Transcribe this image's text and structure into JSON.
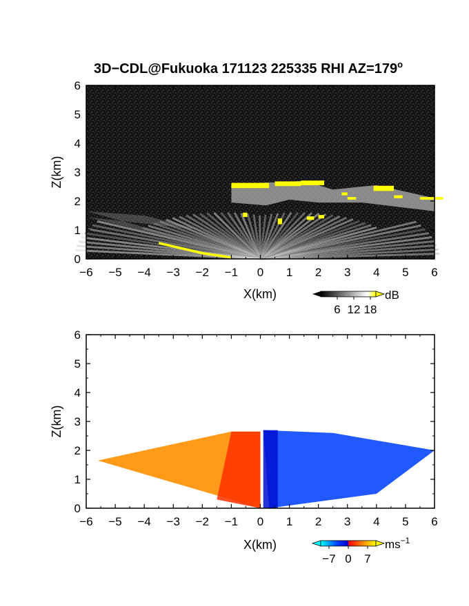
{
  "title": "3D−CDL@Fukuoka 171123 225335 RHI AZ=179",
  "title_sup": "o",
  "chart_data": [
    {
      "type": "heatmap",
      "quantity": "reflectivity",
      "xlabel": "X(km)",
      "ylabel": "Z(km)",
      "xlim": [
        -6,
        6
      ],
      "ylim": [
        0,
        6
      ],
      "xticks": [
        "−6",
        "−5",
        "−4",
        "−3",
        "−2",
        "−1",
        "0",
        "1",
        "2",
        "3",
        "4",
        "5",
        "6"
      ],
      "yticks": [
        "0",
        "1",
        "2",
        "3",
        "4",
        "5",
        "6"
      ],
      "colorbar": {
        "unit": "dB",
        "tick_labels": [
          "6",
          "12",
          "18"
        ],
        "ticks": [
          6,
          12,
          18
        ],
        "range": [
          0,
          20
        ],
        "colors": [
          "#000000",
          "#ffffff",
          "#ffff00"
        ]
      },
      "cloud_layer": {
        "base_km": [
          [
            -1.0,
            2.3
          ],
          [
            0.2,
            2.2
          ],
          [
            1.0,
            2.4
          ],
          [
            2.0,
            2.3
          ],
          [
            3.5,
            2.3
          ],
          [
            6.0,
            2.0
          ]
        ],
        "top_km": [
          [
            -1.0,
            2.6
          ],
          [
            0.5,
            2.65
          ],
          [
            1.5,
            2.7
          ],
          [
            2.5,
            2.4
          ],
          [
            4.0,
            2.55
          ],
          [
            6.0,
            2.1
          ]
        ]
      },
      "low_echo": [
        [
          -3.5,
          0.55
        ],
        [
          -2.0,
          0.2
        ],
        [
          -1.0,
          0.05
        ]
      ],
      "beam_fan_edge_left": [
        [
          -6.0,
          1.65
        ],
        [
          -4.0,
          1.5
        ],
        [
          -2.0,
          1.0
        ]
      ]
    },
    {
      "type": "heatmap",
      "quantity": "radial velocity",
      "xlabel": "X(km)",
      "ylabel": "Z(km)",
      "xlim": [
        -6,
        6
      ],
      "ylim": [
        0,
        6
      ],
      "xticks": [
        "−6",
        "−5",
        "−4",
        "−3",
        "−2",
        "−1",
        "0",
        "1",
        "2",
        "3",
        "4",
        "5",
        "6"
      ],
      "yticks": [
        "0",
        "1",
        "2",
        "3",
        "4",
        "5",
        "6"
      ],
      "colorbar": {
        "unit": "ms",
        "unit_sup": "−1",
        "tick_labels": [
          "−7",
          "0",
          "7"
        ],
        "ticks": [
          -7,
          0,
          7
        ],
        "range": [
          -10,
          10
        ],
        "colors": [
          "#00ffff",
          "#0000ff",
          "#ff0000",
          "#ffff00"
        ]
      },
      "regions": [
        {
          "side": "left",
          "velocity": 5,
          "description_extent_km": [
            [
              -5.6,
              1.65
            ],
            [
              -1.0,
              2.65
            ],
            [
              0.0,
              2.65
            ],
            [
              0.0,
              0.0
            ]
          ]
        },
        {
          "side": "right",
          "velocity": -5,
          "description_extent_km": [
            [
              0.1,
              2.7
            ],
            [
              2.5,
              2.6
            ],
            [
              6.0,
              2.0
            ],
            [
              4.0,
              0.5
            ],
            [
              0.3,
              0.0
            ]
          ]
        },
        {
          "side": "upper-right",
          "velocity": -8,
          "description_extent_km": [
            [
              2.0,
              2.6
            ],
            [
              6.0,
              2.3
            ]
          ]
        }
      ]
    }
  ],
  "colors": {
    "echo": "#ffff00",
    "frame": "#000000"
  }
}
